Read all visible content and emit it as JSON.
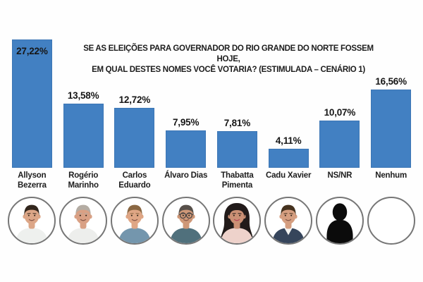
{
  "title": {
    "line1": "SE AS ELEIÇÕES PARA GOVERNADOR DO RIO GRANDE DO NORTE FOSSEM HOJE,",
    "line2": "EM QUAL DESTES NOMES VOCÊ VOTARIA? (ESTIMULADA – CENÁRIO 1)"
  },
  "chart_data": {
    "type": "bar",
    "title": "SE AS ELEIÇÕES PARA GOVERNADOR DO RIO GRANDE DO NORTE FOSSEM HOJE, EM QUAL DESTES NOMES VOCÊ VOTARIA? (ESTIMULADA – CENÁRIO 1)",
    "categories": [
      "Allyson Bezerra",
      "Rogério Marinho",
      "Carlos Eduardo",
      "Álvaro Dias",
      "Thabatta Pimenta",
      "Cadu Xavier",
      "NS/NR",
      "Nenhum"
    ],
    "values": [
      27.22,
      13.58,
      12.72,
      7.95,
      7.81,
      4.11,
      10.07,
      16.56
    ],
    "value_labels": [
      "27,22%",
      "13,58%",
      "12,72%",
      "7,95%",
      "7,81%",
      "4,11%",
      "10,07%",
      "16,56%"
    ],
    "xlabel": "",
    "ylabel": "",
    "ylim": [
      0,
      30
    ],
    "grid": false,
    "legend": false,
    "bar_color": "#4280c2",
    "value_label_placement": [
      "inside-top",
      "above",
      "above",
      "above",
      "above",
      "above",
      "above",
      "above"
    ]
  },
  "candidates": [
    {
      "name": "Allyson Bezerra",
      "name_lines": [
        "Allyson",
        "Bezerra"
      ],
      "value": 27.22,
      "value_label": "27,22%",
      "label_position": "inside-top",
      "avatar": {
        "type": "person",
        "hair_style": "short",
        "skin": "#dca687",
        "hair": "#32261d",
        "shirt": "#eef0ee",
        "glasses": false
      }
    },
    {
      "name": "Rogério Marinho",
      "name_lines": [
        "Rogério",
        "Marinho"
      ],
      "value": 13.58,
      "value_label": "13,58%",
      "label_position": "above",
      "avatar": {
        "type": "person",
        "hair_style": "short",
        "skin": "#d9a084",
        "hair": "#b4aca3",
        "shirt": "#edeeec",
        "glasses": false
      }
    },
    {
      "name": "Carlos Eduardo",
      "name_lines": [
        "Carlos",
        "Eduardo"
      ],
      "value": 12.72,
      "value_label": "12,72%",
      "label_position": "above",
      "avatar": {
        "type": "person",
        "hair_style": "short",
        "skin": "#dfa685",
        "hair": "#8a6742",
        "shirt": "#7496ad",
        "glasses": false
      }
    },
    {
      "name": "Álvaro Dias",
      "name_lines": [
        "Álvaro Dias"
      ],
      "value": 7.95,
      "value_label": "7,95%",
      "label_position": "above",
      "avatar": {
        "type": "person",
        "hair_style": "short",
        "skin": "#cf9878",
        "hair": "#57504a",
        "shirt": "#50707c",
        "glasses": true
      }
    },
    {
      "name": "Thabatta Pimenta",
      "name_lines": [
        "Thabatta",
        "Pimenta"
      ],
      "value": 7.81,
      "value_label": "7,81%",
      "label_position": "above",
      "avatar": {
        "type": "person",
        "hair_style": "long",
        "skin": "#cb9075",
        "hair": "#221b1a",
        "shirt": "#eed2cb",
        "glasses": false,
        "lips": "#b8475a"
      }
    },
    {
      "name": "Cadu Xavier",
      "name_lines": [
        "Cadu Xavier"
      ],
      "value": 4.11,
      "value_label": "4,11%",
      "label_position": "above",
      "avatar": {
        "type": "person",
        "hair_style": "short",
        "skin": "#d59e80",
        "hair": "#45321f",
        "shirt": "#36455b",
        "glasses": false,
        "jacket": true
      }
    },
    {
      "name": "NS/NR",
      "name_lines": [
        "NS/NR"
      ],
      "value": 10.07,
      "value_label": "10,07%",
      "label_position": "above",
      "avatar": {
        "type": "silhouette",
        "fill": "#0b0b0b"
      }
    },
    {
      "name": "Nenhum",
      "name_lines": [
        "Nenhum"
      ],
      "value": 16.56,
      "value_label": "16,56%",
      "label_position": "above",
      "avatar": {
        "type": "empty"
      }
    }
  ],
  "colors": {
    "bar": "#4280c2",
    "text": "#1c1c1c",
    "avatar_ring": "#767676",
    "background": "#fefefe"
  }
}
